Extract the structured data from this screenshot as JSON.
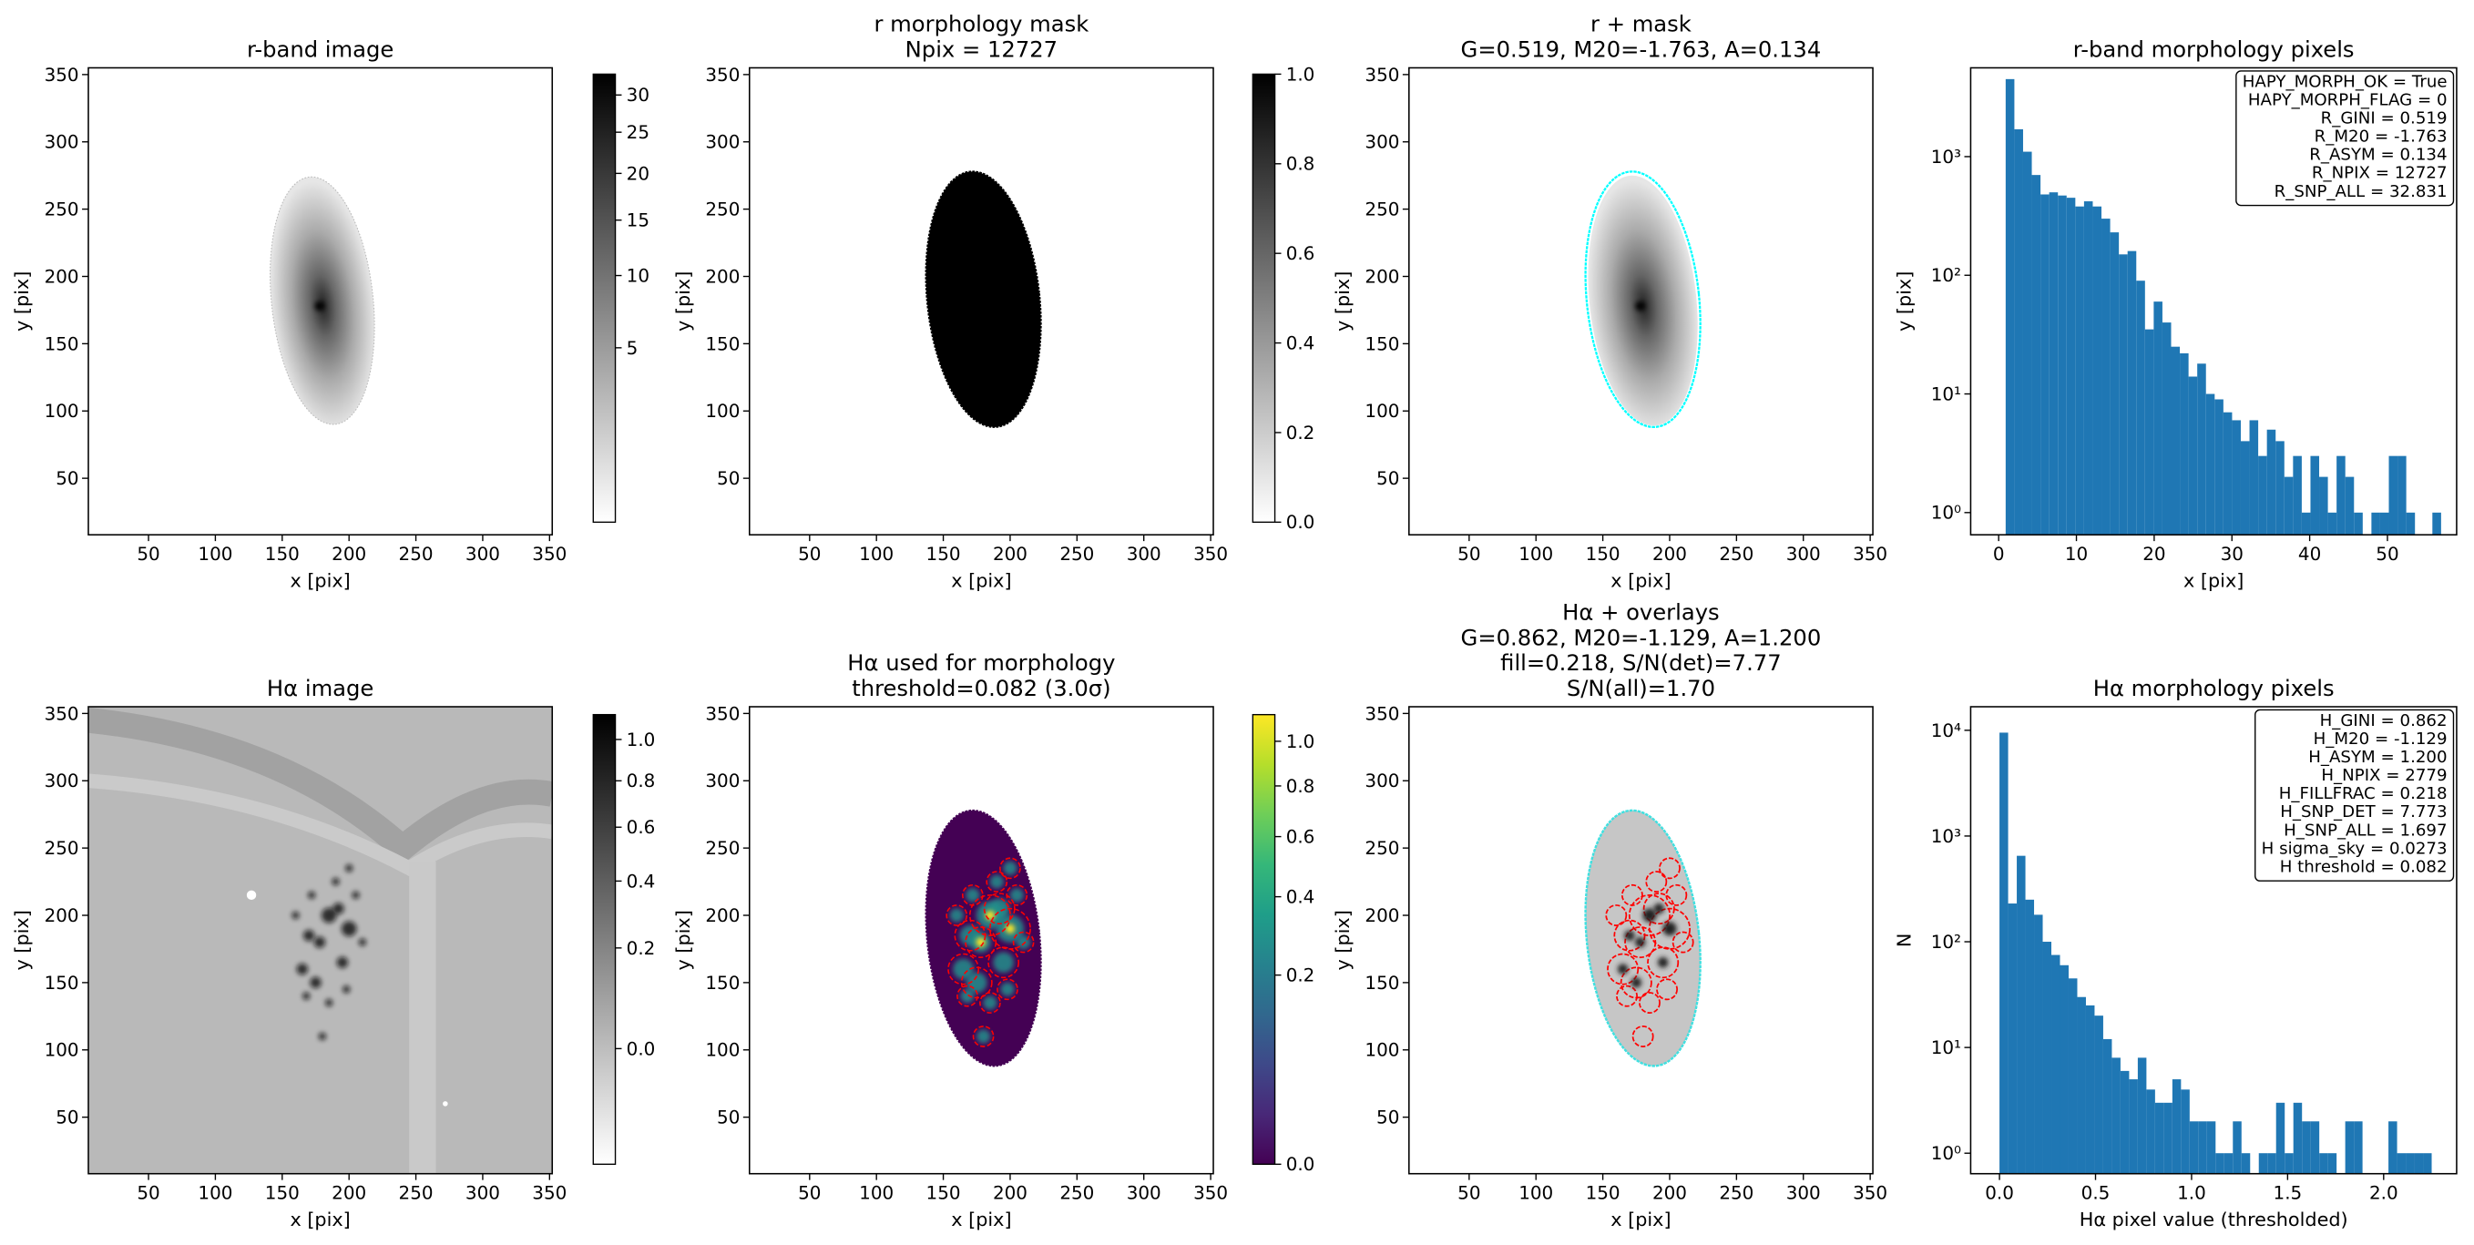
{
  "chart_data": [
    {
      "type": "image",
      "title": [
        "r-band image"
      ],
      "xlabel": "x [pix]",
      "ylabel": "y [pix]",
      "xlim": [
        5,
        352
      ],
      "ylim": [
        8,
        355
      ],
      "xticks": [
        50,
        100,
        150,
        200,
        250,
        300,
        350
      ],
      "yticks": [
        50,
        100,
        150,
        200,
        250,
        300,
        350
      ],
      "colorbar": {
        "cmap": "gray_r",
        "scale": "sqrt",
        "clim": [
          0,
          33
        ],
        "ticks": [
          5,
          10,
          15,
          20,
          25,
          30
        ]
      }
    },
    {
      "type": "image",
      "title": [
        "r morphology mask",
        "Npix = 12727"
      ],
      "xlabel": "x [pix]",
      "ylabel": "y [pix]",
      "xlim": [
        5,
        352
      ],
      "ylim": [
        8,
        355
      ],
      "xticks": [
        50,
        100,
        150,
        200,
        250,
        300,
        350
      ],
      "yticks": [
        50,
        100,
        150,
        200,
        250,
        300,
        350
      ],
      "colorbar": {
        "cmap": "gray_r",
        "scale": "linear",
        "clim": [
          0,
          1
        ],
        "ticks": [
          {
            "value": 0,
            "label": "0.0"
          },
          {
            "value": 0.2,
            "label": "0.2"
          },
          {
            "value": 0.4,
            "label": "0.4"
          },
          {
            "value": 0.6,
            "label": "0.6"
          },
          {
            "value": 0.8,
            "label": "0.8"
          },
          {
            "value": 1,
            "label": "1.0"
          }
        ]
      }
    },
    {
      "type": "image",
      "title": [
        "r + mask",
        "G=0.519, M20=-1.763, A=0.134"
      ],
      "xlabel": "x [pix]",
      "ylabel": "y [pix]",
      "xlim": [
        5,
        352
      ],
      "ylim": [
        8,
        355
      ],
      "xticks": [
        50,
        100,
        150,
        200,
        250,
        300,
        350
      ],
      "yticks": [
        50,
        100,
        150,
        200,
        250,
        300,
        350
      ]
    },
    {
      "type": "histogram",
      "title": [
        "r-band morphology pixels"
      ],
      "xlabel": "x [pix]",
      "ylabel": "y [pix]",
      "color": "#1f77b4",
      "log_y": true,
      "xlim": [
        -3.6,
        58.9
      ],
      "ylim": [
        0.65,
        5600
      ],
      "xticks": [
        0,
        10,
        20,
        30,
        40,
        50
      ],
      "yticks": [
        {
          "value": 1,
          "label": "10⁰"
        },
        {
          "value": 10,
          "label": "10¹"
        },
        {
          "value": 100,
          "label": "10²"
        },
        {
          "value": 1000,
          "label": "10³"
        }
      ],
      "bins": [
        0.9,
        2.02,
        3.14,
        4.26,
        5.38,
        6.5,
        7.62,
        8.74,
        9.86,
        10.98,
        12.1,
        13.22,
        14.34,
        15.46,
        16.58,
        17.7,
        18.82,
        19.94,
        21.06,
        22.18,
        23.3,
        24.42,
        25.54,
        26.66,
        27.78,
        28.9,
        30.02,
        31.14,
        32.26,
        33.38,
        34.5,
        35.62,
        36.74,
        37.86,
        38.98,
        40.1,
        41.22,
        42.34,
        43.46,
        44.58,
        45.7,
        46.82,
        47.94,
        49.06,
        50.18,
        51.3,
        52.42,
        53.54,
        54.66,
        55.78,
        56.9
      ],
      "values": [
        4500,
        1700,
        1100,
        700,
        480,
        500,
        470,
        450,
        380,
        420,
        380,
        300,
        230,
        150,
        160,
        90,
        35,
        60,
        40,
        25,
        22,
        14,
        18,
        10,
        9,
        7,
        6,
        4,
        6,
        3,
        5,
        4,
        2,
        3,
        1,
        3,
        2,
        1,
        3,
        2,
        1,
        0,
        1,
        1,
        3,
        3,
        1,
        0,
        0,
        1
      ],
      "annotation": [
        "HAPY_MORPH_OK = True",
        "HAPY_MORPH_FLAG = 0",
        "R_GINI = 0.519",
        "R_M20 = -1.763",
        "R_ASYM = 0.134",
        "R_NPIX = 12727",
        "R_SNP_ALL = 32.831"
      ]
    },
    {
      "type": "image",
      "title": [
        "Hα image"
      ],
      "xlabel": "x [pix]",
      "ylabel": "y [pix]",
      "xlim": [
        5,
        352
      ],
      "ylim": [
        8,
        355
      ],
      "xticks": [
        50,
        100,
        150,
        200,
        250,
        300,
        350
      ],
      "yticks": [
        50,
        100,
        150,
        200,
        250,
        300,
        350
      ],
      "colorbar": {
        "cmap": "gray_r",
        "scale": "sqrt",
        "clim": [
          -0.08,
          1.13
        ],
        "ticks": [
          {
            "value": 0,
            "label": "0.0"
          },
          {
            "value": 0.2,
            "label": "0.2"
          },
          {
            "value": 0.4,
            "label": "0.4"
          },
          {
            "value": 0.6,
            "label": "0.6"
          },
          {
            "value": 0.8,
            "label": "0.8"
          },
          {
            "value": 1,
            "label": "1.0"
          }
        ]
      }
    },
    {
      "type": "image",
      "title": [
        "Hα used for morphology",
        "threshold=0.082 (3.0σ)"
      ],
      "xlabel": "x [pix]",
      "ylabel": "y [pix]",
      "xlim": [
        5,
        352
      ],
      "ylim": [
        8,
        355
      ],
      "xticks": [
        50,
        100,
        150,
        200,
        250,
        300,
        350
      ],
      "yticks": [
        50,
        100,
        150,
        200,
        250,
        300,
        350
      ],
      "colorbar": {
        "cmap": "viridis",
        "scale": "sqrt",
        "clim": [
          0,
          1.13
        ],
        "ticks": [
          {
            "value": 0,
            "label": "0.0"
          },
          {
            "value": 0.2,
            "label": "0.2"
          },
          {
            "value": 0.4,
            "label": "0.4"
          },
          {
            "value": 0.6,
            "label": "0.6"
          },
          {
            "value": 0.8,
            "label": "0.8"
          },
          {
            "value": 1,
            "label": "1.0"
          }
        ]
      }
    },
    {
      "type": "image",
      "title": [
        "Hα + overlays",
        "G=0.862, M20=-1.129, A=1.200",
        "fill=0.218, S/N(det)=7.77",
        "S/N(all)=1.70"
      ],
      "xlabel": "x [pix]",
      "ylabel": "y [pix]",
      "xlim": [
        5,
        352
      ],
      "ylim": [
        8,
        355
      ],
      "xticks": [
        50,
        100,
        150,
        200,
        250,
        300,
        350
      ],
      "yticks": [
        50,
        100,
        150,
        200,
        250,
        300,
        350
      ]
    },
    {
      "type": "histogram",
      "title": [
        "Hα morphology pixels"
      ],
      "xlabel": "Hα pixel value (thresholded)",
      "ylabel": "N",
      "color": "#1f77b4",
      "log_y": true,
      "xlim": [
        -0.15,
        2.38
      ],
      "ylim": [
        0.64,
        16700
      ],
      "xticks": [
        {
          "value": 0,
          "label": "0.0"
        },
        {
          "value": 0.5,
          "label": "0.5"
        },
        {
          "value": 1,
          "label": "1.0"
        },
        {
          "value": 1.5,
          "label": "1.5"
        },
        {
          "value": 2,
          "label": "2.0"
        }
      ],
      "yticks": [
        {
          "value": 1,
          "label": "10⁰"
        },
        {
          "value": 10,
          "label": "10¹"
        },
        {
          "value": 100,
          "label": "10²"
        },
        {
          "value": 1000,
          "label": "10³"
        },
        {
          "value": 10000,
          "label": "10⁴"
        }
      ],
      "bins": [
        0,
        0.045,
        0.09,
        0.135,
        0.18,
        0.225,
        0.27,
        0.315,
        0.36,
        0.405,
        0.45,
        0.495,
        0.54,
        0.585,
        0.63,
        0.675,
        0.72,
        0.765,
        0.81,
        0.855,
        0.9,
        0.945,
        0.99,
        1.035,
        1.08,
        1.125,
        1.17,
        1.215,
        1.26,
        1.305,
        1.35,
        1.395,
        1.44,
        1.485,
        1.53,
        1.575,
        1.62,
        1.665,
        1.71,
        1.755,
        1.8,
        1.845,
        1.89,
        1.935,
        1.98,
        2.025,
        2.07,
        2.115,
        2.16,
        2.205,
        2.25
      ],
      "values": [
        9500,
        230,
        650,
        250,
        180,
        100,
        75,
        60,
        45,
        30,
        25,
        20,
        12,
        8,
        6,
        5,
        8,
        4,
        3,
        3,
        5,
        4,
        2,
        2,
        2,
        1,
        1,
        2,
        1,
        0,
        1,
        1,
        3,
        1,
        3,
        2,
        2,
        1,
        1,
        0,
        2,
        2,
        0,
        0,
        0,
        2,
        1,
        1,
        1,
        1
      ],
      "annotation": [
        "H_GINI = 0.862",
        "H_M20 = -1.129",
        "H_ASYM = 1.200",
        "H_NPIX = 2779",
        "H_FILLFRAC = 0.218",
        "H_SNP_DET = 7.773",
        "H_SNP_ALL = 1.697",
        "H sigma_sky = 0.0273",
        "H threshold = 0.082"
      ]
    }
  ]
}
